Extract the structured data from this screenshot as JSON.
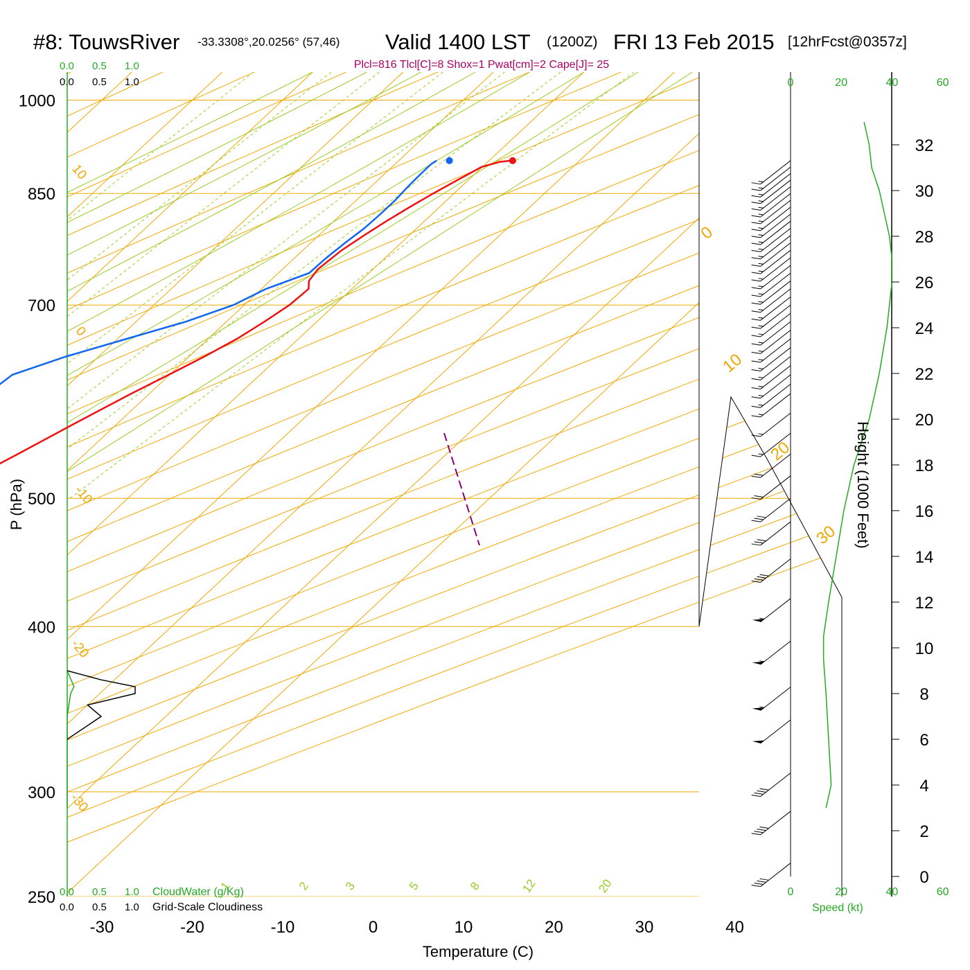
{
  "header": {
    "station": "#8: TouwsRiver",
    "coords": "-33.3308°,20.0256° (57,46)",
    "valid": "Valid 1400 LST",
    "utc": "(1200Z)",
    "date": "FRI 13 Feb 2015",
    "forecast": "[12hrFcst@0357z]",
    "indices": "Plcl=816 Tlcl[C]=8 Shox=1 Pwat[cm]=2 Cape[J]= 25"
  },
  "labels": {
    "cloudwater_ticks": [
      "0.0",
      "0.5",
      "1.0"
    ],
    "cloudiness_ticks": [
      "0.0",
      "0.5",
      "1.0"
    ],
    "cloudwater_title": "CloudWater (g/Kg)",
    "cloudiness_title": "Grid-Scale Cloudiness",
    "speed_title": "Speed (kt)",
    "xlabel": "Temperature (C)",
    "ylabel": "P (hPa)",
    "height_label": "Height (1000 Feet)"
  },
  "colors": {
    "temperature": "#ee1111",
    "dewpoint": "#1166ee",
    "isotherm": "#f0a800",
    "dry_adiabat": "#f0a800",
    "moist_adiabat": "#99cc22",
    "mixing_ratio": "#99cc22",
    "parcel": "#880077",
    "cloudwater": "#22aa22",
    "cloudiness": "#000000",
    "speed": "#22aa22",
    "indices": "#aa0066",
    "wind": "#000000"
  },
  "chart_data": {
    "type": "line",
    "chart_kind": "skew-T log-p sounding",
    "xlabel": "Temperature (C)",
    "ylabel": "P (hPa)",
    "x_ticks": [
      -30,
      -20,
      -10,
      0,
      10,
      20,
      30,
      40
    ],
    "p_ticks": [
      250,
      300,
      400,
      500,
      700,
      850,
      1000
    ],
    "plim": [
      1050,
      250
    ],
    "isotherm_labels": [
      -30,
      -20,
      -10,
      0,
      10,
      20,
      30
    ],
    "dry_adiabat_labels": [
      10,
      0,
      -10,
      -20,
      -30
    ],
    "mixing_ratio_labels": [
      1,
      2,
      3,
      5,
      8,
      12,
      20
    ],
    "height_ticks": [
      0,
      2,
      4,
      6,
      8,
      10,
      12,
      14,
      16,
      18,
      20,
      22,
      24,
      26,
      28,
      30,
      32
    ],
    "speed_ticks": [
      0,
      20,
      40,
      60
    ],
    "temperature": {
      "p": [
        900,
        898,
        890,
        870,
        850,
        830,
        810,
        790,
        770,
        745,
        730,
        720,
        700,
        680,
        660,
        640,
        620,
        600,
        570,
        540,
        510,
        480,
        450,
        420,
        400,
        370,
        340,
        320,
        300,
        280,
        265
      ],
      "t": [
        22.4,
        21.3,
        19.9,
        18.8,
        17.7,
        16.7,
        15.8,
        15.0,
        14.3,
        13.9,
        14.3,
        15.2,
        15.0,
        14.2,
        13.2,
        11.7,
        9.9,
        8.0,
        5.3,
        2.6,
        -0.4,
        -3.5,
        -6.6,
        -9.7,
        -12.0,
        -15.4,
        -19.4,
        -22.3,
        -25.9,
        -29.8,
        -32.9
      ]
    },
    "dewpoint": {
      "p": [
        900,
        895,
        880,
        860,
        840,
        820,
        800,
        780,
        760,
        740,
        720,
        700,
        680,
        660,
        640,
        620,
        600,
        580,
        560,
        540,
        520,
        500,
        480,
        460,
        440,
        420,
        400,
        380,
        360,
        340,
        320,
        300,
        280,
        265
      ],
      "t": [
        14.2,
        14.0,
        14.0,
        14.1,
        14.3,
        14.3,
        14.2,
        13.8,
        13.5,
        13.4,
        10.5,
        8.8,
        5.5,
        1.0,
        -3.6,
        -7.4,
        -7.9,
        -7.6,
        -8.0,
        -9.0,
        -10.5,
        -12.7,
        -15.2,
        -18.0,
        -21.2,
        -24.6,
        -28.3,
        -32.3,
        -37.2,
        -41.9,
        -47.0,
        -52.8,
        -58.7,
        -63.0
      ]
    },
    "surface_temperature": {
      "p": 900,
      "t": 22.6
    },
    "surface_dewpoint": {
      "p": 900,
      "t": 15.6
    },
    "parcel": {
      "p": [
        545,
        530,
        510,
        490,
        470,
        470
      ],
      "t": [
        -1.8,
        -3.0,
        -4.5,
        -6.0,
        -7.5,
        -7.5
      ]
    },
    "mixing_ratio_lines": [
      1,
      2,
      3,
      5,
      8,
      12,
      20
    ],
    "cloudwater": {
      "height_kft": [
        3,
        7,
        8,
        8.3,
        9
      ],
      "value": [
        0,
        0,
        0.05,
        0.1,
        0
      ]
    },
    "cloudiness": {
      "height_kft": [
        6,
        7,
        7.5,
        8,
        8.3,
        8.6,
        9
      ],
      "value": [
        0,
        0.5,
        0.3,
        1.0,
        1.0,
        0.5,
        0
      ]
    },
    "speed_profile": {
      "height_kft": [
        3.0,
        4.0,
        6.0,
        8.0,
        9.5,
        10.5,
        12.0,
        14.0,
        16.0,
        18.0,
        20.0,
        22.0,
        24.0,
        26.0,
        27.0,
        28.0,
        30.0,
        31.0,
        32.0,
        33.0
      ],
      "speed_kt": [
        14,
        16,
        15,
        14,
        13,
        13,
        15,
        18,
        21,
        25,
        31,
        35,
        38,
        40,
        40,
        39,
        35,
        32,
        31,
        29
      ]
    },
    "wind_barbs": {
      "p": [
        900,
        890,
        880,
        870,
        860,
        850,
        840,
        830,
        820,
        810,
        800,
        790,
        780,
        770,
        760,
        750,
        740,
        730,
        720,
        710,
        700,
        690,
        680,
        670,
        660,
        650,
        640,
        630,
        620,
        610,
        600,
        580,
        560,
        540,
        520,
        500,
        480,
        450,
        420,
        390,
        360,
        340,
        310,
        290,
        265
      ],
      "speed_kt": [
        15,
        15,
        15,
        15,
        15,
        15,
        15,
        15,
        15,
        15,
        15,
        15,
        15,
        15,
        15,
        15,
        15,
        15,
        15,
        15,
        15,
        15,
        15,
        15,
        15,
        15,
        15,
        15,
        15,
        15,
        15,
        15,
        15,
        20,
        20,
        30,
        30,
        40,
        55,
        55,
        55,
        50,
        40,
        40,
        40
      ]
    }
  }
}
